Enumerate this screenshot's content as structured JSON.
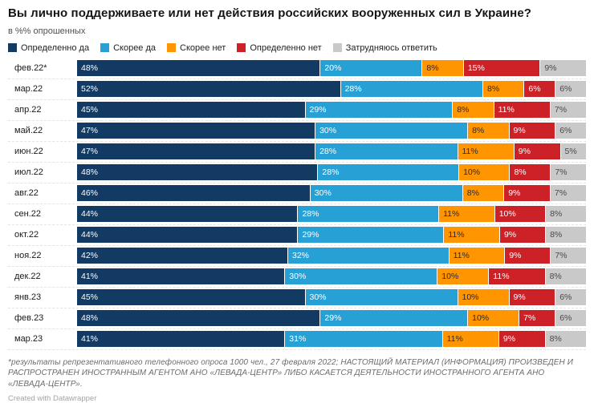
{
  "header": {
    "title": "Вы лично поддерживаете или нет действия российских вооруженных сил в Украине?",
    "subtitle": "в %% опрошенных"
  },
  "legend": [
    {
      "label": "Определенно да",
      "color": "#123a63"
    },
    {
      "label": "Скорее да",
      "color": "#27a0d6"
    },
    {
      "label": "Скорее нет",
      "color": "#ff9500"
    },
    {
      "label": "Определенно нет",
      "color": "#cb2127"
    },
    {
      "label": "Затрудняюсь ответить",
      "color": "#c9c9c9"
    }
  ],
  "chart_data": {
    "type": "bar",
    "stacked": true,
    "orientation": "horizontal",
    "unit": "%",
    "title": "Вы лично поддерживаете или нет действия российских вооруженных сил в Украине?",
    "xlabel": "",
    "ylabel": "",
    "xlim": [
      0,
      100
    ],
    "grid": false,
    "legend_position": "top",
    "categories": [
      "фев.22*",
      "мар.22",
      "апр.22",
      "май.22",
      "июн.22",
      "июл.22",
      "авг.22",
      "сен.22",
      "окт.22",
      "ноя.22",
      "дек.22",
      "янв.23",
      "фев.23",
      "мар.23"
    ],
    "series": [
      {
        "name": "Определенно да",
        "color": "#123a63",
        "text_color": "#ffffff",
        "values": [
          48,
          52,
          45,
          47,
          47,
          48,
          46,
          44,
          44,
          42,
          41,
          45,
          48,
          41
        ]
      },
      {
        "name": "Скорее да",
        "color": "#27a0d6",
        "text_color": "#ffffff",
        "values": [
          20,
          28,
          29,
          30,
          28,
          28,
          30,
          28,
          29,
          32,
          30,
          30,
          29,
          31
        ]
      },
      {
        "name": "Скорее нет",
        "color": "#ff9500",
        "text_color": "#2b2b2b",
        "values": [
          8,
          8,
          8,
          8,
          11,
          10,
          8,
          11,
          11,
          11,
          10,
          10,
          10,
          11
        ]
      },
      {
        "name": "Определенно нет",
        "color": "#cb2127",
        "text_color": "#ffffff",
        "values": [
          15,
          6,
          11,
          9,
          9,
          8,
          9,
          10,
          9,
          9,
          11,
          9,
          7,
          9
        ]
      },
      {
        "name": "Затрудняюсь ответить",
        "color": "#c9c9c9",
        "text_color": "#4a4a4a",
        "values": [
          9,
          6,
          7,
          6,
          5,
          7,
          7,
          8,
          8,
          7,
          8,
          6,
          6,
          8
        ]
      }
    ]
  },
  "footer": {
    "note": "*результаты репрезентативного телефонного опроса 1000 чел., 27 февраля 2022; НАСТОЯЩИЙ МАТЕРИАЛ (ИНФОРМАЦИЯ) ПРОИЗВЕДЕН И РАСПРОСТРАНЕН ИНОСТРАННЫМ АГЕНТОМ АНО «ЛЕВАДА-ЦЕНТР» ЛИБО КАСАЕТСЯ ДЕЯТЕЛЬНОСТИ ИНОСТРАННОГО АГЕНТА АНО «ЛЕВАДА-ЦЕНТР».",
    "credit": "Created with Datawrapper"
  }
}
